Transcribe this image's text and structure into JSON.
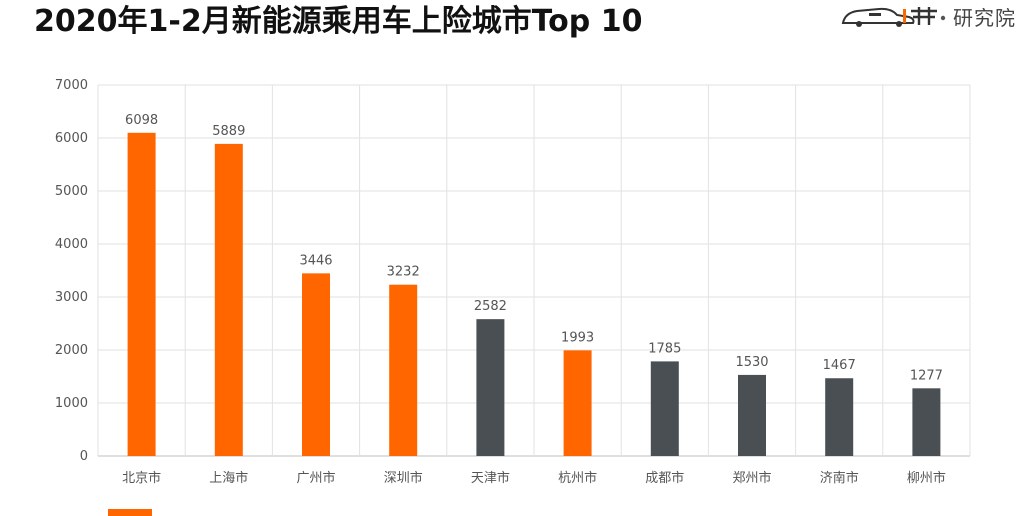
{
  "header": {
    "title": "2020年1-2月新能源乘用车上险城市Top 10",
    "logo_text": "研究院"
  },
  "colors": {
    "highlight": "#ff6600",
    "neutral": "#4a4f53",
    "grid": "#e2e2e2",
    "axis": "#bfbfbf"
  },
  "chart_data": {
    "type": "bar",
    "title": "2020年1-2月新能源乘用车上险城市Top 10",
    "categories": [
      "北京市",
      "上海市",
      "广州市",
      "深圳市",
      "天津市",
      "杭州市",
      "成都市",
      "郑州市",
      "济南市",
      "柳州市"
    ],
    "values": [
      6098,
      5889,
      3446,
      3232,
      2582,
      1993,
      1785,
      1530,
      1467,
      1277
    ],
    "bar_colors": [
      "#ff6600",
      "#ff6600",
      "#ff6600",
      "#ff6600",
      "#4a4f53",
      "#ff6600",
      "#4a4f53",
      "#4a4f53",
      "#4a4f53",
      "#4a4f53"
    ],
    "ylim": [
      0,
      7000
    ],
    "yticks": [
      0,
      1000,
      2000,
      3000,
      4000,
      5000,
      6000,
      7000
    ],
    "xlabel": "",
    "ylabel": "",
    "grid": true,
    "legend": "bottom-left"
  }
}
